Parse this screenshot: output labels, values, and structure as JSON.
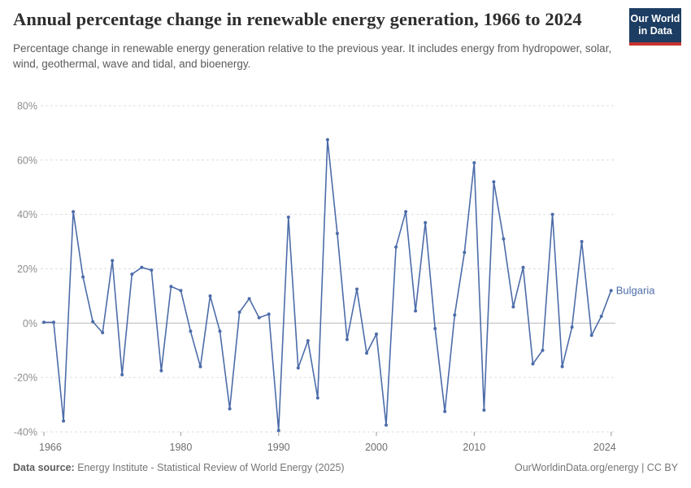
{
  "header": {
    "title": "Annual percentage change in renewable energy generation, 1966 to 2024",
    "subtitle": "Percentage change in renewable energy generation relative to the previous year. It includes energy from hydropower, solar, wind, geothermal, wave and tidal, and bioenergy.",
    "logo": {
      "line1": "Our World",
      "line2": "in Data"
    }
  },
  "chart_data": {
    "type": "line",
    "title": "Annual percentage change in renewable energy generation, 1966 to 2024",
    "xlabel": "",
    "ylabel": "",
    "ylim": [
      -40,
      80
    ],
    "xlim": [
      1966,
      2024
    ],
    "yticks": [
      80,
      60,
      40,
      20,
      0,
      -20,
      -40
    ],
    "ytick_labels": [
      "80%",
      "60%",
      "40%",
      "20%",
      "0%",
      "-20%",
      "-40%"
    ],
    "xticks": [
      1966,
      1980,
      1990,
      2000,
      2010,
      2024
    ],
    "xtick_labels": [
      "1966",
      "1980",
      "1990",
      "2000",
      "2010",
      "2024"
    ],
    "grid": "horizontal-dashed",
    "legend_position": "end-of-line-label",
    "series": [
      {
        "name": "Bulgaria",
        "color": "#4c6ca9",
        "x": [
          1966,
          1967,
          1968,
          1969,
          1970,
          1971,
          1972,
          1973,
          1974,
          1975,
          1976,
          1977,
          1978,
          1979,
          1980,
          1981,
          1982,
          1983,
          1984,
          1985,
          1986,
          1987,
          1988,
          1989,
          1990,
          1991,
          1992,
          1993,
          1994,
          1995,
          1996,
          1997,
          1998,
          1999,
          2000,
          2001,
          2002,
          2003,
          2004,
          2005,
          2006,
          2007,
          2008,
          2009,
          2010,
          2011,
          2012,
          2013,
          2014,
          2015,
          2016,
          2017,
          2018,
          2019,
          2020,
          2021,
          2022,
          2023,
          2024
        ],
        "values": [
          0.3,
          0.3,
          -36,
          41,
          17,
          0.5,
          -3.5,
          23,
          -19,
          18,
          20.5,
          19.5,
          -17.5,
          13.5,
          12,
          -3,
          -16,
          10,
          -3,
          -31.5,
          4,
          9,
          2,
          3.3,
          -39.5,
          39,
          -16.5,
          -6.5,
          -27.5,
          67.5,
          33,
          -6,
          12.5,
          -11,
          -4,
          -37.5,
          28,
          41,
          4.5,
          37,
          -2,
          -32.5,
          3,
          26,
          59,
          -32,
          52,
          31,
          6,
          20.5,
          -15,
          -10,
          40,
          -16,
          -1.5,
          30,
          -4.5,
          2.5,
          12
        ]
      }
    ]
  },
  "footer": {
    "source_label": "Data source:",
    "source_text": " Energy Institute - Statistical Review of World Energy (2025)",
    "credit": "OurWorldinData.org/energy | CC BY"
  },
  "colors": {
    "line": "#4c6ca9",
    "logo_bg": "#1d3d63",
    "logo_red": "#c5322d",
    "grid": "#dedede",
    "zero_line": "#b8b8b8",
    "y_tick_text": "#8e8e8e",
    "x_tick_text": "#6e6e6e",
    "tick_mark": "#999999"
  }
}
